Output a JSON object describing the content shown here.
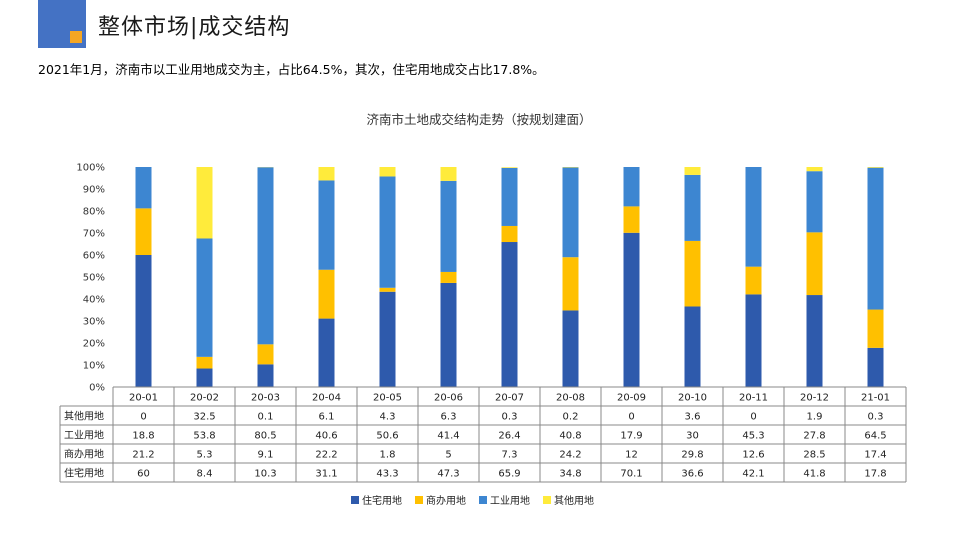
{
  "header": {
    "title": "整体市场|成交结构"
  },
  "summary": "2021年1月，济南市以工业用地成交为主，占比64.5%，其次，住宅用地成交占比17.8%。",
  "colors": {
    "residential": "#2e5aac",
    "commercial": "#ffc000",
    "industrial": "#3d86d1",
    "other": "#ffeb3b",
    "accent": "#4472c4",
    "accent2": "#f5a623"
  },
  "chart_data": {
    "type": "bar",
    "stacked": true,
    "title": "济南市土地成交结构走势（按规划建面）",
    "categories": [
      "20-01",
      "20-02",
      "20-03",
      "20-04",
      "20-05",
      "20-06",
      "20-07",
      "20-08",
      "20-09",
      "20-10",
      "20-11",
      "20-12",
      "21-01"
    ],
    "ylim": [
      0,
      100
    ],
    "yticks": [
      "0%",
      "10%",
      "20%",
      "30%",
      "40%",
      "50%",
      "60%",
      "70%",
      "80%",
      "90%",
      "100%"
    ],
    "grid": false,
    "legend_position": "bottom",
    "series": [
      {
        "name": "住宅用地",
        "values": [
          60,
          8.4,
          10.3,
          31.1,
          43.3,
          47.3,
          65.9,
          34.8,
          70.1,
          36.6,
          42.1,
          41.8,
          17.8
        ],
        "labels": [
          "60",
          "8.4",
          "10.3",
          "31.1",
          "43.3",
          "47.3",
          "65.9",
          "34.8",
          "70.1",
          "36.6",
          "42.1",
          "41.8",
          "17.8"
        ]
      },
      {
        "name": "商办用地",
        "values": [
          21.2,
          5.3,
          9.1,
          22.2,
          1.8,
          5,
          7.3,
          24.2,
          12,
          29.8,
          12.6,
          28.5,
          17.4
        ],
        "labels": [
          "21.2",
          "5.3",
          "9.1",
          "22.2",
          "1.8",
          "5",
          "7.3",
          "24.2",
          "12",
          "29.8",
          "12.6",
          "28.5",
          "17.4"
        ]
      },
      {
        "name": "工业用地",
        "values": [
          18.8,
          53.8,
          80.5,
          40.6,
          50.6,
          41.4,
          26.4,
          40.8,
          17.9,
          30,
          45.3,
          27.8,
          64.5
        ],
        "labels": [
          "18.8",
          "53.8",
          "80.5",
          "40.6",
          "50.6",
          "41.4",
          "26.4",
          "40.8",
          "17.9",
          "30",
          "45.3",
          "27.8",
          "64.5"
        ]
      },
      {
        "name": "其他用地",
        "values": [
          0,
          32.5,
          0.1,
          6.1,
          4.3,
          6.3,
          0.3,
          0.2,
          0,
          3.6,
          0,
          1.9,
          0.3
        ],
        "labels": [
          "0",
          "32.5",
          "0.1",
          "6.1",
          "4.3",
          "6.3",
          "0.3",
          "0.2",
          "0",
          "3.6",
          "0",
          "1.9",
          "0.3"
        ]
      }
    ],
    "table_row_order": [
      "其他用地",
      "工业用地",
      "商办用地",
      "住宅用地"
    ],
    "legend_order": [
      "住宅用地",
      "商办用地",
      "工业用地",
      "其他用地"
    ]
  }
}
